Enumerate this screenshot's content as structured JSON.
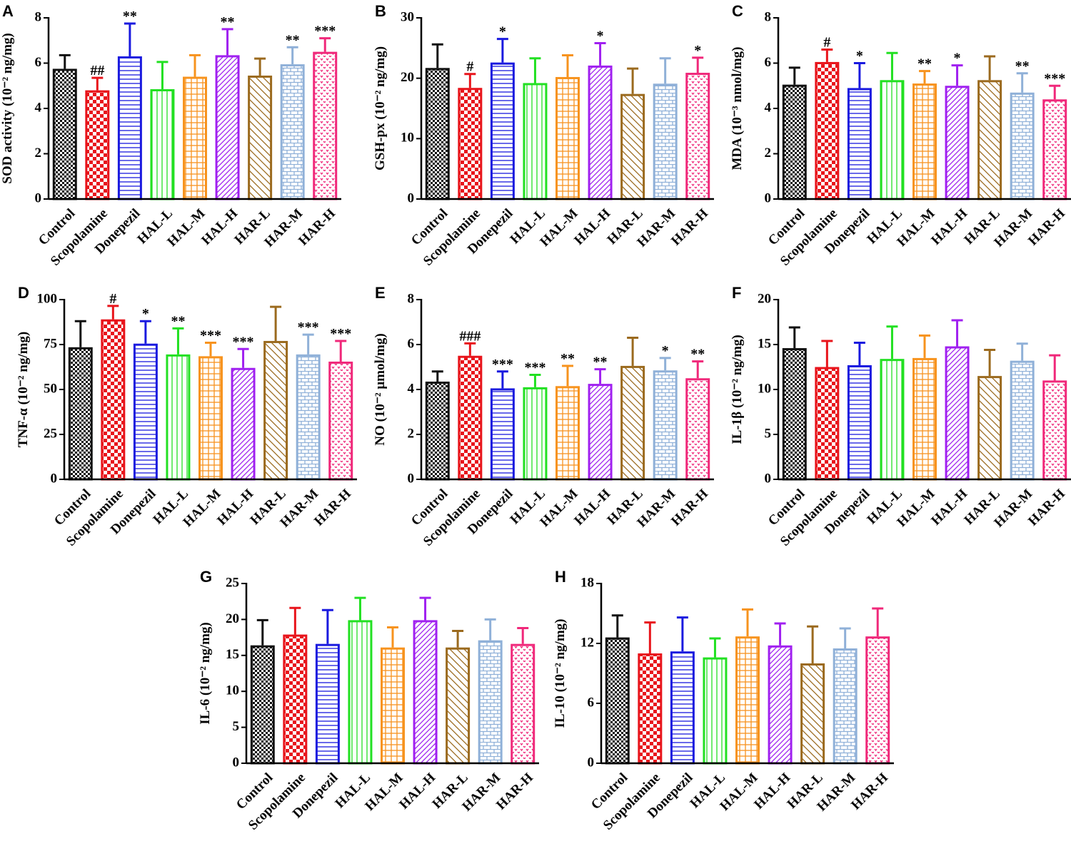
{
  "chart_data": [
    {
      "type": "bar",
      "panel": "A",
      "ylabel": "SOD activity (10⁻² ng/mg)",
      "categories": [
        "Control",
        "Scopolamine",
        "Donepezil",
        "HAL-L",
        "HAL-M",
        "HAL-H",
        "HAR-L",
        "HAR-M",
        "HAR-H"
      ],
      "values": [
        5.75,
        4.8,
        6.3,
        4.85,
        5.4,
        6.35,
        5.45,
        5.95,
        6.5
      ],
      "errors": [
        0.6,
        0.55,
        1.45,
        1.2,
        0.95,
        1.15,
        0.75,
        0.75,
        0.6
      ],
      "annotations": [
        null,
        "##",
        "**",
        null,
        null,
        "**",
        null,
        "**",
        "***"
      ],
      "colors": [
        "#111111",
        "#e8141b",
        "#1a1adf",
        "#22e022",
        "#f7931e",
        "#a020f0",
        "#9b6a1e",
        "#8fb0d8",
        "#f0287a"
      ],
      "ylim": [
        0,
        8
      ],
      "yticks": [
        0,
        2,
        4,
        6,
        8
      ]
    },
    {
      "type": "bar",
      "panel": "B",
      "ylabel": "GSH-px (10⁻² ng/mg)",
      "categories": [
        "Control",
        "Scopolamine",
        "Donepezil",
        "HAL-L",
        "HAL-M",
        "HAL-H",
        "HAR-L",
        "HAR-M",
        "HAR-H"
      ],
      "values": [
        21.7,
        18.4,
        22.6,
        19.2,
        20.2,
        22.1,
        17.4,
        19.1,
        20.9
      ],
      "errors": [
        3.9,
        2.3,
        3.9,
        4.1,
        3.6,
        3.7,
        4.2,
        4.2,
        2.5
      ],
      "annotations": [
        null,
        "#",
        "*",
        null,
        null,
        "*",
        null,
        null,
        "*"
      ],
      "colors": [
        "#111111",
        "#e8141b",
        "#1a1adf",
        "#22e022",
        "#f7931e",
        "#a020f0",
        "#9b6a1e",
        "#8fb0d8",
        "#f0287a"
      ],
      "ylim": [
        0,
        30
      ],
      "yticks": [
        0,
        10,
        20,
        30
      ]
    },
    {
      "type": "bar",
      "panel": "C",
      "ylabel": "MDA (10⁻³ nmol/mg)",
      "categories": [
        "Control",
        "Scopolamine",
        "Donepezil",
        "HAL-L",
        "HAL-M",
        "HAL-H",
        "HAR-L",
        "HAR-M",
        "HAR-H"
      ],
      "values": [
        5.05,
        6.05,
        4.9,
        5.25,
        5.1,
        5.0,
        5.25,
        4.7,
        4.4
      ],
      "errors": [
        0.75,
        0.55,
        1.1,
        1.2,
        0.55,
        0.9,
        1.05,
        0.85,
        0.6
      ],
      "annotations": [
        null,
        "#",
        "*",
        null,
        "**",
        "*",
        null,
        "**",
        "***"
      ],
      "colors": [
        "#111111",
        "#e8141b",
        "#1a1adf",
        "#22e022",
        "#f7931e",
        "#a020f0",
        "#9b6a1e",
        "#8fb0d8",
        "#f0287a"
      ],
      "ylim": [
        0,
        8
      ],
      "yticks": [
        0,
        2,
        4,
        6,
        8
      ]
    },
    {
      "type": "bar",
      "panel": "D",
      "ylabel": "TNF-α  (10⁻² ng/mg)",
      "categories": [
        "Control",
        "Scopolamine",
        "Donepezil",
        "HAL-L",
        "HAL-M",
        "HAL-H",
        "HAR-L",
        "HAR-M",
        "HAR-H"
      ],
      "values": [
        73.5,
        89,
        75.5,
        69.5,
        68.5,
        62,
        77,
        69.5,
        65.5
      ],
      "errors": [
        14.5,
        7.5,
        12.5,
        14.5,
        7.5,
        10.5,
        19,
        11,
        11.5
      ],
      "annotations": [
        null,
        "#",
        "*",
        "**",
        "***",
        "***",
        null,
        "***",
        "***"
      ],
      "colors": [
        "#111111",
        "#e8141b",
        "#1a1adf",
        "#22e022",
        "#f7931e",
        "#a020f0",
        "#9b6a1e",
        "#8fb0d8",
        "#f0287a"
      ],
      "ylim": [
        0,
        100
      ],
      "yticks": [
        0,
        25,
        50,
        75,
        100
      ]
    },
    {
      "type": "bar",
      "panel": "E",
      "ylabel": "NO (10⁻² μmol/mg)",
      "categories": [
        "Control",
        "Scopolamine",
        "Donepezil",
        "HAL-L",
        "HAL-M",
        "HAL-H",
        "HAR-L",
        "HAR-M",
        "HAR-H"
      ],
      "values": [
        4.35,
        5.5,
        4.05,
        4.1,
        4.15,
        4.25,
        5.05,
        4.85,
        4.5
      ],
      "errors": [
        0.45,
        0.55,
        0.75,
        0.55,
        0.9,
        0.65,
        1.25,
        0.55,
        0.75
      ],
      "annotations": [
        null,
        "###",
        "***",
        "***",
        "**",
        "**",
        null,
        "*",
        "**"
      ],
      "colors": [
        "#111111",
        "#e8141b",
        "#1a1adf",
        "#22e022",
        "#f7931e",
        "#a020f0",
        "#9b6a1e",
        "#8fb0d8",
        "#f0287a"
      ],
      "ylim": [
        0,
        8
      ],
      "yticks": [
        0,
        2,
        4,
        6,
        8
      ]
    },
    {
      "type": "bar",
      "panel": "F",
      "ylabel": "IL-1β  (10⁻² ng/mg)",
      "categories": [
        "Control",
        "Scopolamine",
        "Donepezil",
        "HAL-L",
        "HAL-M",
        "HAL-H",
        "HAR-L",
        "HAR-M",
        "HAR-H"
      ],
      "values": [
        14.6,
        12.5,
        12.7,
        13.4,
        13.5,
        14.8,
        11.5,
        13.2,
        11.0
      ],
      "errors": [
        2.3,
        2.9,
        2.5,
        3.6,
        2.5,
        2.9,
        2.9,
        1.9,
        2.8
      ],
      "colors": [
        "#111111",
        "#e8141b",
        "#1a1adf",
        "#22e022",
        "#f7931e",
        "#a020f0",
        "#9b6a1e",
        "#8fb0d8",
        "#f0287a"
      ],
      "ylim": [
        0,
        20
      ],
      "yticks": [
        0,
        5,
        10,
        15,
        20
      ]
    },
    {
      "type": "bar",
      "panel": "G",
      "ylabel": "IL-6 (10⁻² ng/mg)",
      "categories": [
        "Control",
        "Scopolamine",
        "Donepezil",
        "HAL-L",
        "HAL-M",
        "HAL-H",
        "HAR-L",
        "HAR-M",
        "HAR-H"
      ],
      "values": [
        16.4,
        17.9,
        16.6,
        19.9,
        16.1,
        19.9,
        16.1,
        17.1,
        16.6
      ],
      "errors": [
        3.5,
        3.7,
        4.7,
        3.1,
        2.8,
        3.1,
        2.3,
        2.9,
        2.2
      ],
      "colors": [
        "#111111",
        "#e8141b",
        "#1a1adf",
        "#22e022",
        "#f7931e",
        "#a020f0",
        "#9b6a1e",
        "#8fb0d8",
        "#f0287a"
      ],
      "ylim": [
        0,
        25
      ],
      "yticks": [
        0,
        5,
        10,
        15,
        20,
        25
      ]
    },
    {
      "type": "bar",
      "panel": "H",
      "ylabel": "IL-10 (10⁻² ng/mg)",
      "categories": [
        "Control",
        "Scopolamine",
        "Donepezil",
        "HAL-L",
        "HAL-M",
        "HAL-H",
        "HAR-L",
        "HAR-M",
        "HAR-H"
      ],
      "values": [
        12.6,
        11.0,
        11.2,
        10.6,
        12.7,
        11.8,
        10.0,
        11.5,
        12.7
      ],
      "errors": [
        2.2,
        3.1,
        3.4,
        1.9,
        2.7,
        2.2,
        3.7,
        2.0,
        2.8
      ],
      "colors": [
        "#111111",
        "#e8141b",
        "#1a1adf",
        "#22e022",
        "#f7931e",
        "#a020f0",
        "#9b6a1e",
        "#8fb0d8",
        "#f0287a"
      ],
      "ylim": [
        0,
        18
      ],
      "yticks": [
        0,
        6,
        12,
        18
      ]
    }
  ]
}
